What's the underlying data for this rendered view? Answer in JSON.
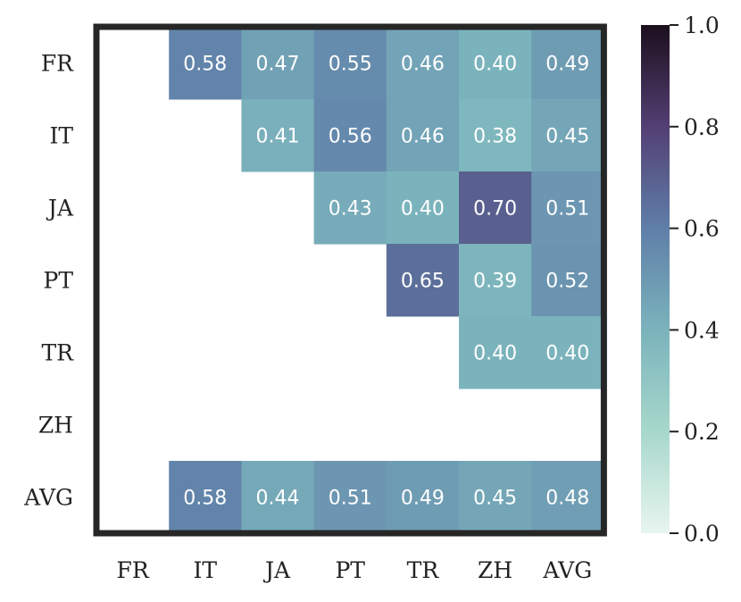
{
  "chart_data": {
    "type": "heatmap",
    "title": "",
    "xlabel": "",
    "ylabel": "",
    "x_labels": [
      "FR",
      "IT",
      "JA",
      "PT",
      "TR",
      "ZH",
      "AVG"
    ],
    "y_labels": [
      "FR",
      "IT",
      "JA",
      "PT",
      "TR",
      "ZH",
      "AVG"
    ],
    "values": [
      [
        null,
        0.58,
        0.47,
        0.55,
        0.46,
        0.4,
        0.49
      ],
      [
        null,
        null,
        0.41,
        0.56,
        0.46,
        0.38,
        0.45
      ],
      [
        null,
        null,
        null,
        0.43,
        0.4,
        0.7,
        0.51
      ],
      [
        null,
        null,
        null,
        null,
        0.65,
        0.39,
        0.52
      ],
      [
        null,
        null,
        null,
        null,
        null,
        0.4,
        0.4
      ],
      [
        null,
        null,
        null,
        null,
        null,
        null,
        null
      ],
      [
        null,
        0.58,
        0.44,
        0.51,
        0.49,
        0.45,
        0.48
      ]
    ],
    "labels": [
      [
        null,
        "0.58",
        "0.47",
        "0.55",
        "0.46",
        "0.40",
        "0.49"
      ],
      [
        null,
        null,
        "0.41",
        "0.56",
        "0.46",
        "0.38",
        "0.45"
      ],
      [
        null,
        null,
        null,
        "0.43",
        "0.40",
        "0.70",
        "0.51"
      ],
      [
        null,
        null,
        null,
        null,
        "0.65",
        "0.39",
        "0.52"
      ],
      [
        null,
        null,
        null,
        null,
        null,
        "0.40",
        "0.40"
      ],
      [
        null,
        null,
        null,
        null,
        null,
        null,
        null
      ],
      [
        null,
        "0.58",
        "0.44",
        "0.51",
        "0.49",
        "0.45",
        "0.48"
      ]
    ],
    "colorbar": {
      "range": [
        0.0,
        1.0
      ],
      "ticks": [
        0.0,
        0.2,
        0.4,
        0.6,
        0.8,
        1.0
      ],
      "tick_labels": [
        "0.0",
        "0.2",
        "0.4",
        "0.6",
        "0.8",
        "1.0"
      ],
      "colormap": [
        "#e8f5ef",
        "#a7d8cb",
        "#7bb3bc",
        "#5f7fa8",
        "#533f74",
        "#1c0f1d"
      ]
    },
    "grid": false,
    "frame_color": "#262626"
  }
}
